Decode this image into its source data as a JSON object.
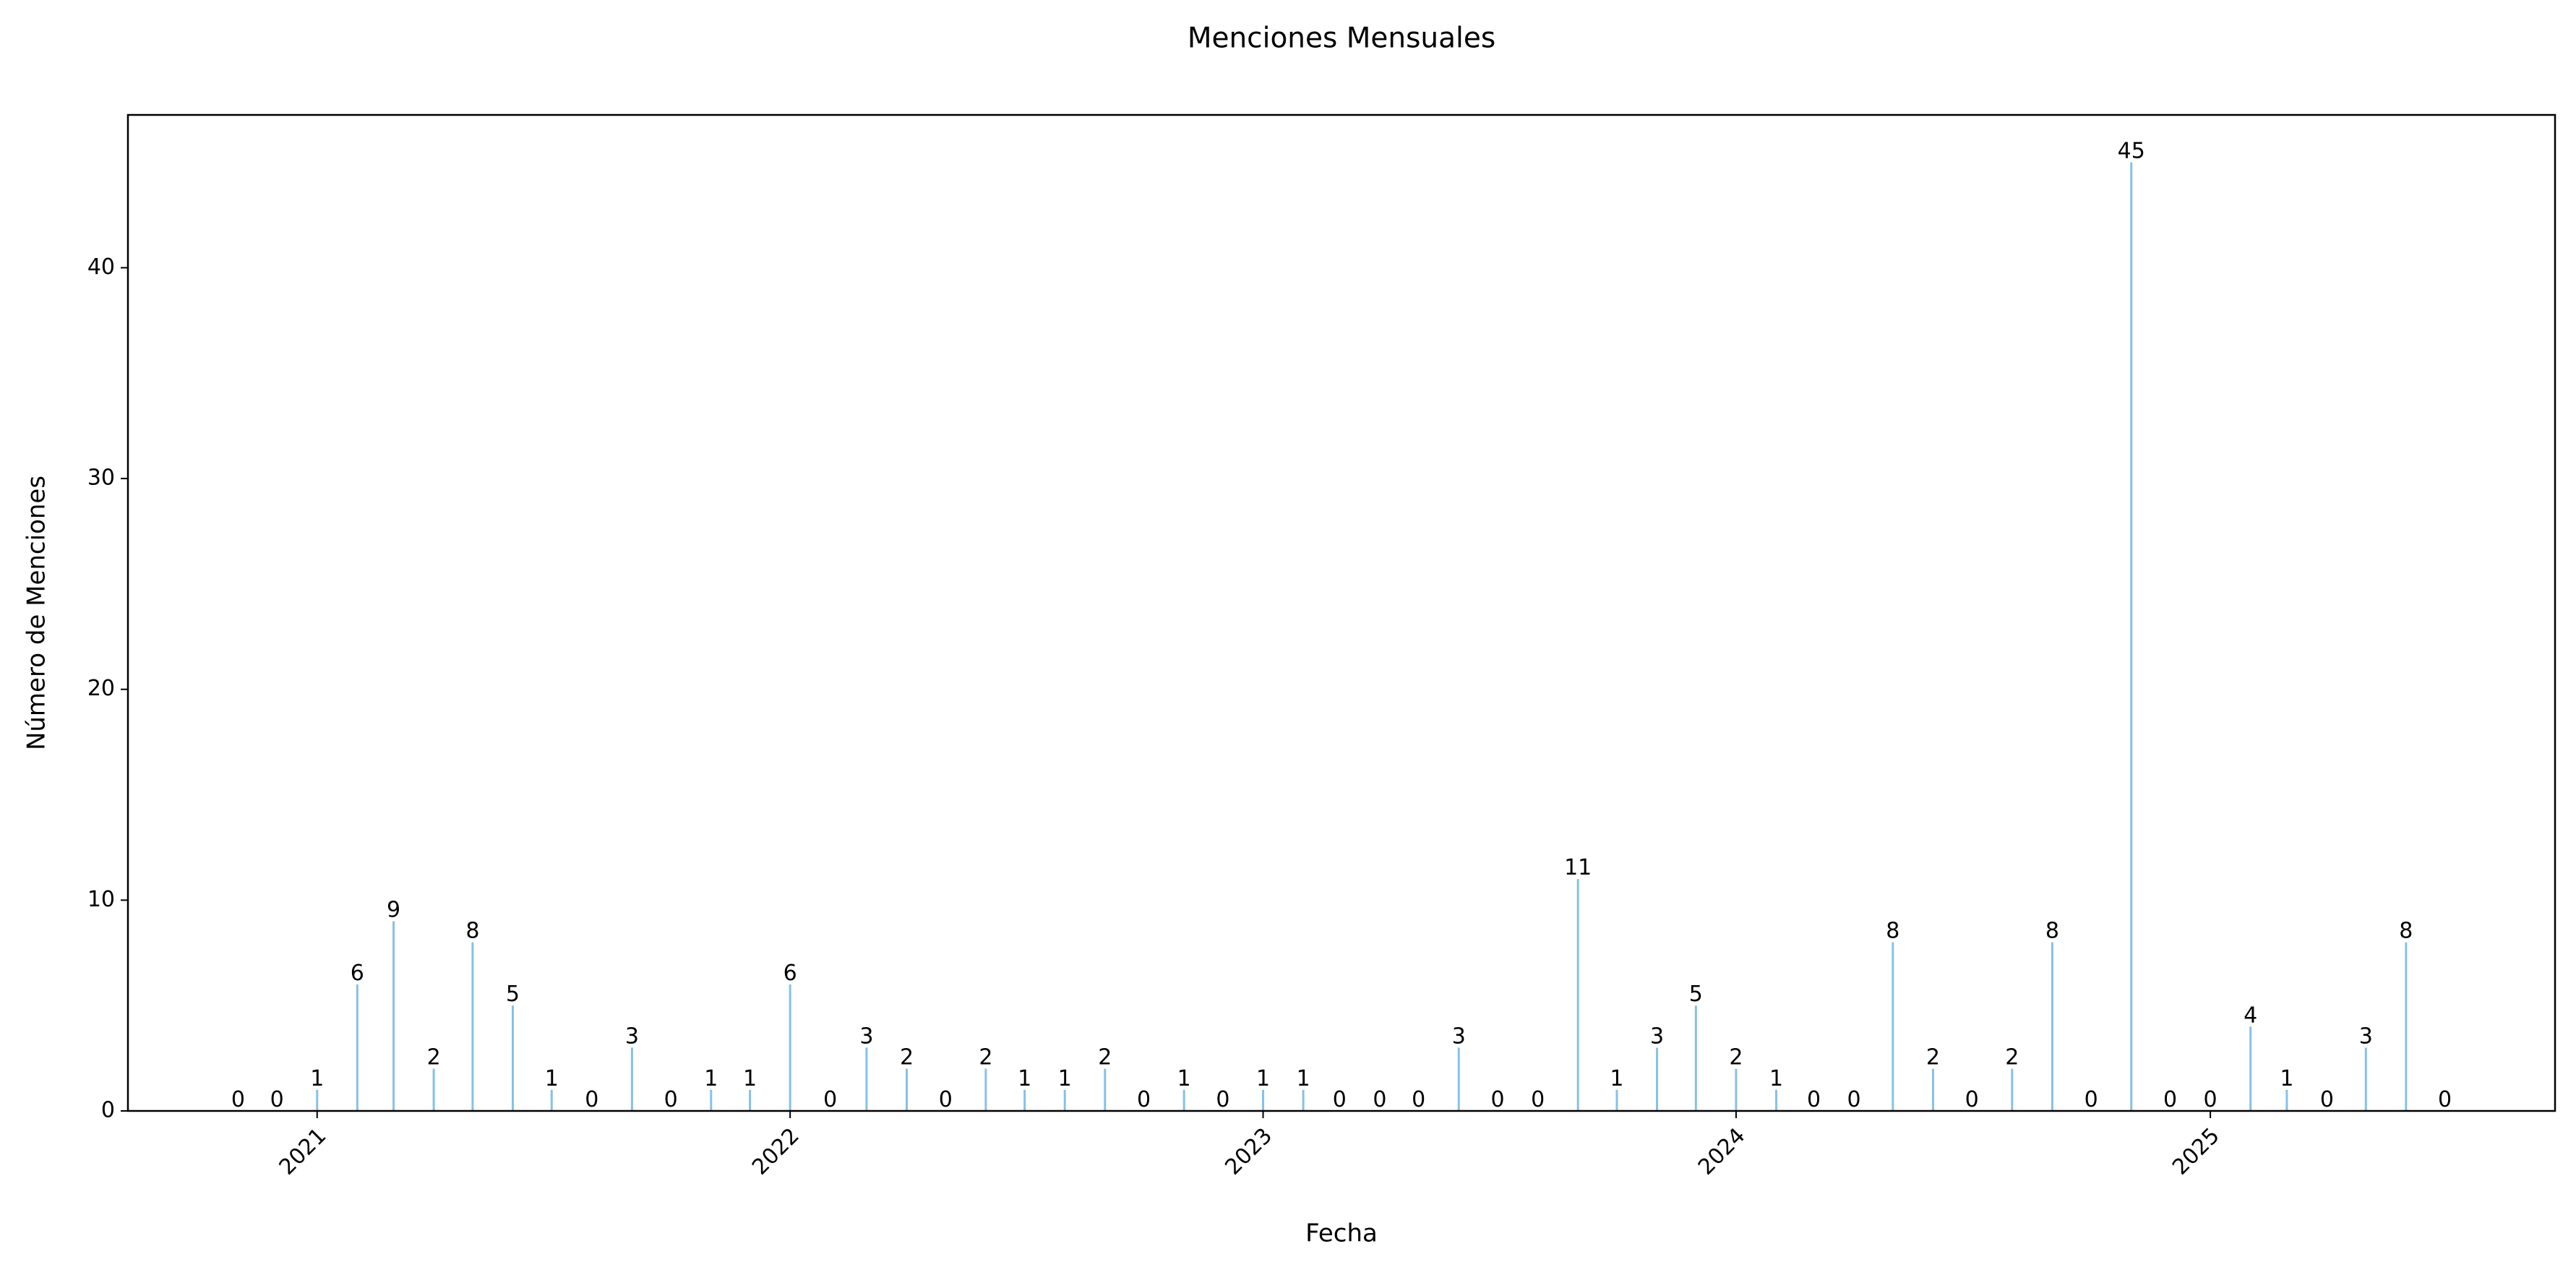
{
  "chart_data": {
    "type": "bar",
    "title": "Menciones Mensuales",
    "x_label": "Fecha",
    "y_label": "Número de Menciones",
    "x": [
      "2020-11",
      "2020-12",
      "2021-01",
      "2021-02",
      "2021-03",
      "2021-04",
      "2021-05",
      "2021-06",
      "2021-07",
      "2021-08",
      "2021-09",
      "2021-10",
      "2021-11",
      "2021-12",
      "2022-01",
      "2022-02",
      "2022-03",
      "2022-04",
      "2022-05",
      "2022-06",
      "2022-07",
      "2022-08",
      "2022-09",
      "2022-10",
      "2022-11",
      "2022-12",
      "2023-01",
      "2023-02",
      "2023-03",
      "2023-04",
      "2023-05",
      "2023-06",
      "2023-07",
      "2023-08",
      "2023-09",
      "2023-10",
      "2023-11",
      "2023-12",
      "2024-01",
      "2024-02",
      "2024-03",
      "2024-04",
      "2024-05",
      "2024-06",
      "2024-07",
      "2024-08",
      "2024-09",
      "2024-10",
      "2024-11",
      "2024-12",
      "2025-01",
      "2025-02",
      "2025-03",
      "2025-04",
      "2025-05",
      "2025-06",
      "2025-07"
    ],
    "values": [
      0,
      0,
      1,
      6,
      9,
      2,
      8,
      5,
      1,
      0,
      3,
      0,
      1,
      1,
      6,
      0,
      3,
      2,
      0,
      2,
      1,
      1,
      2,
      0,
      1,
      0,
      1,
      1,
      0,
      0,
      0,
      3,
      0,
      0,
      11,
      1,
      3,
      5,
      2,
      1,
      0,
      0,
      8,
      2,
      0,
      2,
      8,
      0,
      45,
      0,
      0,
      4,
      1,
      0,
      3,
      8,
      0
    ],
    "color": "#85c1e9",
    "xlim": [
      "2020-08-08",
      "2025-09-24"
    ],
    "xticks": [
      {
        "value": "2021-01",
        "label": "2021"
      },
      {
        "value": "2022-01",
        "label": "2022"
      },
      {
        "value": "2023-01",
        "label": "2023"
      },
      {
        "value": "2024-01",
        "label": "2024"
      },
      {
        "value": "2025-01",
        "label": "2025"
      }
    ],
    "ylim": [
      0,
      47.25
    ],
    "yticks": [
      0,
      10,
      20,
      30,
      40
    ],
    "grid": false
  }
}
